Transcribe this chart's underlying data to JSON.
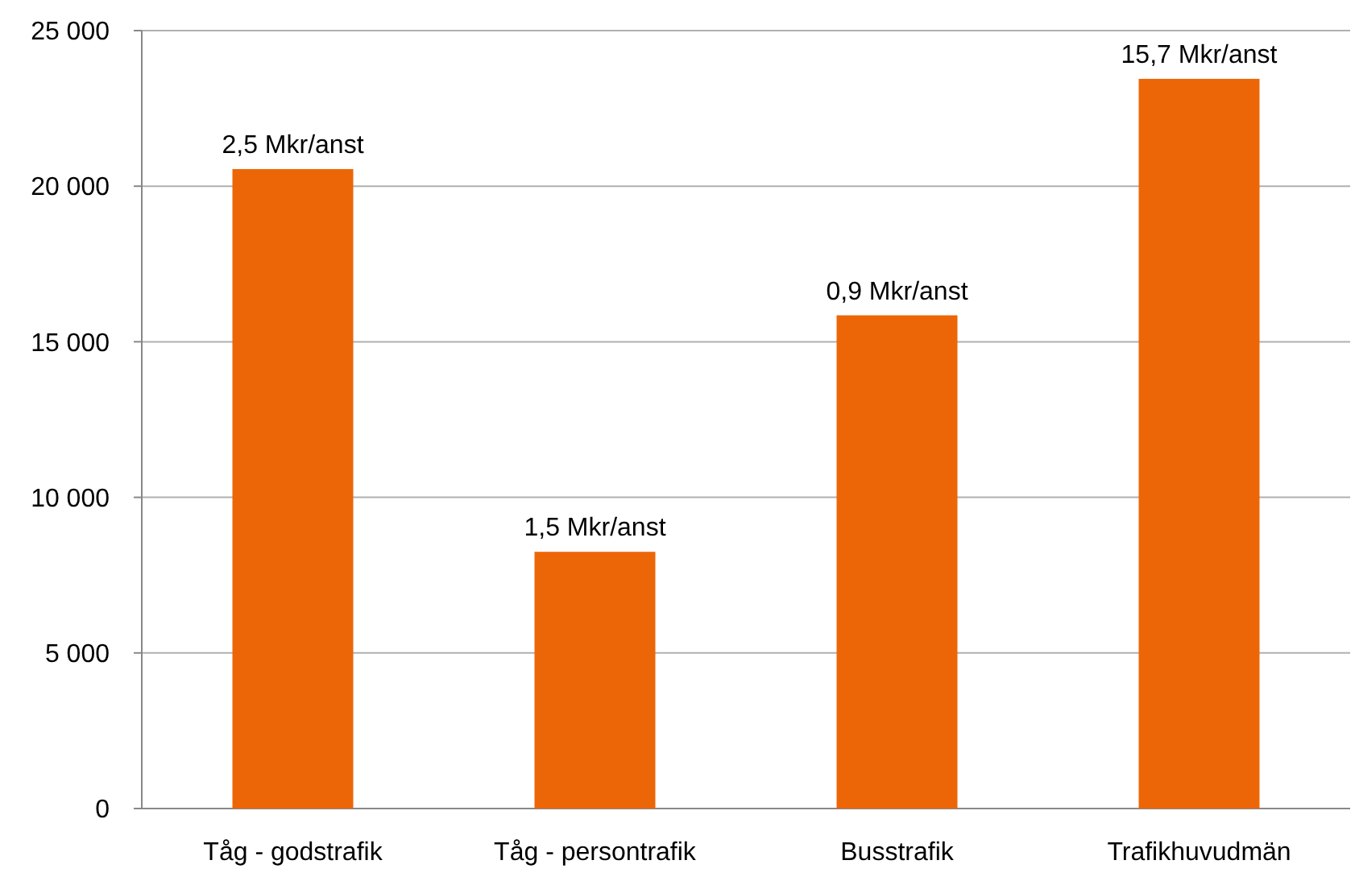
{
  "chart_data": {
    "type": "bar",
    "categories": [
      "Tåg - godstrafik",
      "Tåg - persontrafik",
      "Busstrafik",
      "Trafikhuvudmän"
    ],
    "values": [
      20550,
      8250,
      15850,
      23450
    ],
    "annotations": [
      {
        "text": "2,5 Mkr/anst",
        "x": "Tåg - godstrafik",
        "y": 20550
      },
      {
        "text": "1,5 Mkr/anst",
        "x": "Tåg - persontrafik",
        "y": 8250
      },
      {
        "text": "0,9 Mkr/anst",
        "x": "Busstrafik",
        "y": 15850
      },
      {
        "text": "15,7 Mkr/anst",
        "x": "Trafikhuvudmän",
        "y": 23450
      }
    ],
    "color": "#ec6608",
    "ylim": [
      0,
      25000
    ],
    "yticks": [
      0,
      {
        "value": 5000,
        "label": "5 000"
      },
      {
        "value": 10000,
        "label": "10 000"
      },
      {
        "value": 15000,
        "label": "15 000"
      },
      {
        "value": 20000,
        "label": "20 000"
      },
      {
        "value": 25000,
        "label": "25 000"
      }
    ],
    "grid": "y"
  }
}
